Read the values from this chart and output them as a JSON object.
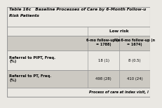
{
  "title_line1": "Table 16c   Baseline Processes of Care by 6-Month Follow-u",
  "title_line2": "Risk Patients",
  "col_header_1": "Low risk",
  "col_sub1": "6-mo follow-up (n\n= 1788)",
  "col_sub2": "No 6-mo follow-up (n\n= 1674)",
  "row1_label": "Referral to PIPT, Freq.\n(%)",
  "row1_val1": "18 (1)",
  "row1_val2": "8 (0.5)",
  "row2_label": "Referral to PT, Freq.\n(%)",
  "row2_val1": "498 (28)",
  "row2_val2": "410 (24)",
  "footer": "Process of care at index visit, l",
  "bg_light": "#eae8e3",
  "bg_dark": "#ccc9c2",
  "border_color": "#999999",
  "text_color": "#000000",
  "title_bg": "#d4d0c8"
}
